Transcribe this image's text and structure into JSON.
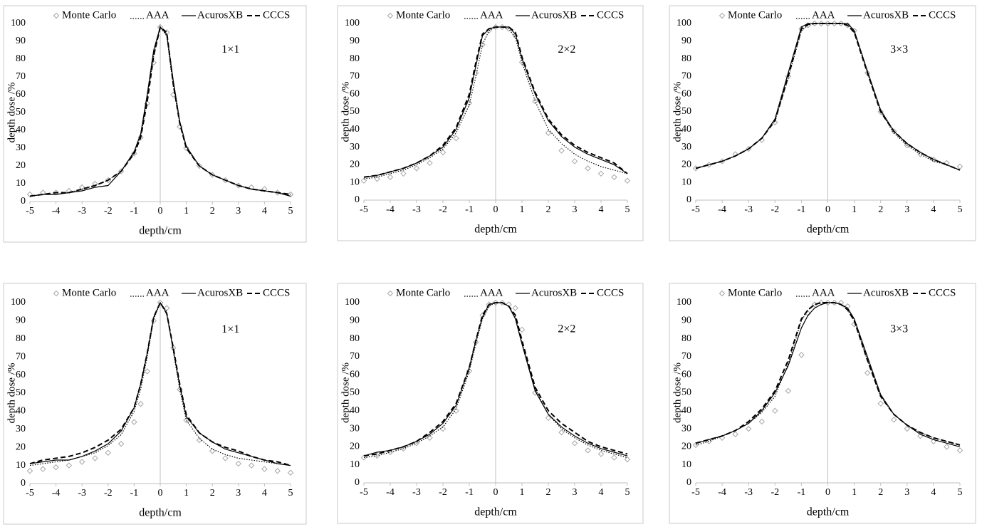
{
  "chart_data": [
    {
      "type": "line",
      "annotation": "1×1",
      "x_label": "depth/cm",
      "y_label": "depth dose /%",
      "xlim": [
        -5,
        5
      ],
      "ylim": [
        0,
        100
      ],
      "xticks": [
        -5,
        -4,
        -3,
        -2,
        -1,
        0,
        1,
        2,
        3,
        4,
        5
      ],
      "yticks": [
        0,
        10,
        20,
        30,
        40,
        50,
        60,
        70,
        80,
        90,
        100
      ],
      "x": [
        -5,
        -4.5,
        -4,
        -3.5,
        -3,
        -2.5,
        -2,
        -1.5,
        -1,
        -0.75,
        -0.5,
        -0.25,
        0,
        0.25,
        0.5,
        0.75,
        1,
        1.5,
        2,
        2.5,
        3,
        3.5,
        4,
        4.5,
        5
      ],
      "series": [
        {
          "name": "Monte Carlo",
          "color": "#a6a6a6",
          "style": "markers",
          "values": [
            4,
            5,
            5,
            6,
            8,
            10,
            12,
            17,
            27,
            36,
            55,
            78,
            98,
            95,
            60,
            42,
            30,
            20,
            15,
            12,
            9,
            8,
            7,
            5,
            4
          ]
        },
        {
          "name": "AAA",
          "color": "#000000",
          "style": "dotted",
          "values": [
            3,
            4,
            4,
            5,
            7,
            9,
            12,
            17,
            27,
            36,
            58,
            82,
            98,
            93,
            65,
            44,
            30,
            20,
            15,
            12,
            9,
            7,
            6,
            5,
            4
          ]
        },
        {
          "name": "AcurosXB",
          "color": "#000000",
          "style": "solid",
          "values": [
            3,
            4,
            4,
            5,
            6,
            8,
            9,
            17,
            28,
            38,
            60,
            85,
            98,
            94,
            68,
            45,
            31,
            20,
            15,
            12,
            9,
            7,
            6,
            5,
            3
          ]
        },
        {
          "name": "CCCS",
          "color": "#000000",
          "style": "dashed",
          "values": [
            3,
            4,
            5,
            5,
            7,
            9,
            12,
            17,
            27,
            36,
            56,
            82,
            98,
            95,
            66,
            44,
            30,
            20,
            15,
            12,
            9,
            7,
            6,
            5,
            4
          ]
        }
      ]
    },
    {
      "type": "line",
      "annotation": "2×2",
      "x_label": "depth/cm",
      "y_label": "depth dose /%",
      "xlim": [
        -5,
        5
      ],
      "ylim": [
        0,
        100
      ],
      "xticks": [
        -5,
        -4,
        -3,
        -2,
        -1,
        0,
        1,
        2,
        3,
        4,
        5
      ],
      "yticks": [
        0,
        10,
        20,
        30,
        40,
        50,
        60,
        70,
        80,
        90,
        100
      ],
      "x": [
        -5,
        -4.5,
        -4,
        -3.5,
        -3,
        -2.5,
        -2,
        -1.5,
        -1,
        -0.75,
        -0.5,
        -0.25,
        0,
        0.25,
        0.5,
        0.75,
        1,
        1.5,
        2,
        2.5,
        3,
        3.5,
        4,
        4.5,
        5
      ],
      "series": [
        {
          "name": "Monte Carlo",
          "color": "#a6a6a6",
          "style": "markers",
          "values": [
            11,
            12,
            13,
            15,
            18,
            21,
            27,
            35,
            55,
            72,
            88,
            96,
            98,
            98,
            97,
            93,
            78,
            56,
            38,
            28,
            22,
            18,
            15,
            13,
            11
          ]
        },
        {
          "name": "AAA",
          "color": "#000000",
          "style": "dotted",
          "values": [
            12,
            13,
            15,
            17,
            20,
            24,
            29,
            38,
            54,
            70,
            88,
            96,
            98,
            98,
            97,
            92,
            78,
            56,
            40,
            32,
            26,
            22,
            19,
            17,
            15
          ]
        },
        {
          "name": "AcurosXB",
          "color": "#000000",
          "style": "solid",
          "values": [
            13,
            14,
            16,
            18,
            21,
            25,
            30,
            40,
            58,
            76,
            93,
            97,
            98,
            98,
            98,
            94,
            80,
            60,
            45,
            36,
            30,
            26,
            23,
            20,
            15
          ]
        },
        {
          "name": "CCCS",
          "color": "#000000",
          "style": "dashed",
          "values": [
            13,
            14,
            16,
            18,
            21,
            25,
            31,
            41,
            60,
            78,
            94,
            97,
            98,
            98,
            98,
            95,
            81,
            61,
            46,
            37,
            31,
            27,
            24,
            21,
            15
          ]
        }
      ]
    },
    {
      "type": "line",
      "annotation": "3×3",
      "x_label": "depth/cm",
      "y_label": "depth dose /%",
      "xlim": [
        -5,
        5
      ],
      "ylim": [
        0,
        100
      ],
      "xticks": [
        -5,
        -4,
        -3,
        -2,
        -1,
        0,
        1,
        2,
        3,
        4,
        5
      ],
      "yticks": [
        0,
        10,
        20,
        30,
        40,
        50,
        60,
        70,
        80,
        90,
        100
      ],
      "x": [
        -5,
        -4.5,
        -4,
        -3.5,
        -3,
        -2.5,
        -2,
        -1.5,
        -1,
        -0.75,
        -0.5,
        -0.25,
        0,
        0.25,
        0.5,
        0.75,
        1,
        1.5,
        2,
        2.5,
        3,
        3.5,
        4,
        4.5,
        5
      ],
      "series": [
        {
          "name": "Monte Carlo",
          "color": "#a6a6a6",
          "style": "markers",
          "values": [
            18,
            20,
            22,
            26,
            29,
            34,
            44,
            70,
            97,
            99,
            100,
            100,
            100,
            100,
            100,
            99,
            96,
            72,
            50,
            39,
            31,
            26,
            23,
            21,
            19
          ]
        },
        {
          "name": "AAA",
          "color": "#000000",
          "style": "dotted",
          "values": [
            18,
            20,
            22,
            25,
            29,
            35,
            45,
            69,
            96,
            99,
            100,
            100,
            100,
            100,
            100,
            99,
            95,
            72,
            50,
            38,
            31,
            26,
            22,
            20,
            17
          ]
        },
        {
          "name": "AcurosXB",
          "color": "#000000",
          "style": "solid",
          "values": [
            18,
            20,
            22,
            25,
            29,
            35,
            46,
            72,
            98,
            100,
            100,
            100,
            100,
            100,
            100,
            100,
            96,
            73,
            51,
            39,
            32,
            27,
            23,
            20,
            17
          ]
        },
        {
          "name": "CCCS",
          "color": "#000000",
          "style": "dashed",
          "values": [
            18,
            20,
            22,
            25,
            29,
            35,
            45,
            70,
            97,
            99.5,
            100,
            100,
            100,
            100,
            100,
            99,
            95,
            72,
            50,
            39,
            32,
            27,
            23,
            20,
            17
          ]
        }
      ]
    },
    {
      "type": "line",
      "annotation": "1×1",
      "x_label": "depth/cm",
      "y_label": "depth dose /%",
      "xlim": [
        -5,
        5
      ],
      "ylim": [
        0,
        100
      ],
      "xticks": [
        -5,
        -4,
        -3,
        -2,
        -1,
        0,
        1,
        2,
        3,
        4,
        5
      ],
      "yticks": [
        0,
        10,
        20,
        30,
        40,
        50,
        60,
        70,
        80,
        90,
        100
      ],
      "x": [
        -5,
        -4.5,
        -4,
        -3.5,
        -3,
        -2.5,
        -2,
        -1.5,
        -1,
        -0.75,
        -0.5,
        -0.25,
        0,
        0.25,
        0.5,
        0.75,
        1,
        1.5,
        2,
        2.5,
        3,
        3.5,
        4,
        4.5,
        5
      ],
      "series": [
        {
          "name": "Monte Carlo",
          "color": "#a6a6a6",
          "style": "markers",
          "values": [
            7,
            8,
            9,
            10,
            12,
            14,
            17,
            22,
            34,
            44,
            62,
            90,
            100,
            97,
            75,
            52,
            35,
            24,
            18,
            14,
            11,
            10,
            8,
            7,
            6
          ]
        },
        {
          "name": "AAA",
          "color": "#000000",
          "style": "dotted",
          "values": [
            10,
            11,
            12,
            13,
            15,
            17,
            21,
            27,
            40,
            52,
            70,
            91,
            100,
            95,
            73,
            52,
            35,
            25,
            19,
            16,
            14,
            13,
            12,
            11,
            10
          ]
        },
        {
          "name": "AcurosXB",
          "color": "#000000",
          "style": "solid",
          "values": [
            11,
            12,
            13,
            13,
            15,
            18,
            22,
            29,
            42,
            55,
            72,
            92,
            100,
            94,
            74,
            54,
            37,
            28,
            23,
            19,
            17,
            15,
            13,
            11,
            10
          ]
        },
        {
          "name": "CCCS",
          "color": "#000000",
          "style": "dashed",
          "values": [
            11,
            13,
            14,
            15,
            17,
            20,
            24,
            30,
            42,
            55,
            72,
            92,
            100,
            94,
            75,
            55,
            38,
            28,
            23,
            20,
            18,
            15,
            13,
            12,
            10
          ]
        }
      ]
    },
    {
      "type": "line",
      "annotation": "2×2",
      "x_label": "depth/cm",
      "y_label": "depth dose /%",
      "xlim": [
        -5,
        5
      ],
      "ylim": [
        0,
        100
      ],
      "xticks": [
        -5,
        -4,
        -3,
        -2,
        -1,
        0,
        1,
        2,
        3,
        4,
        5
      ],
      "yticks": [
        0,
        10,
        20,
        30,
        40,
        50,
        60,
        70,
        80,
        90,
        100
      ],
      "x": [
        -5,
        -4.5,
        -4,
        -3.5,
        -3,
        -2.5,
        -2,
        -1.5,
        -1,
        -0.75,
        -0.5,
        -0.25,
        0,
        0.25,
        0.5,
        0.75,
        1,
        1.5,
        2,
        2.5,
        3,
        3.5,
        4,
        4.5,
        5
      ],
      "series": [
        {
          "name": "Monte Carlo",
          "color": "#a6a6a6",
          "style": "markers",
          "values": [
            14,
            15,
            17,
            19,
            22,
            25,
            30,
            40,
            62,
            78,
            93,
            99,
            100,
            100,
            99,
            97,
            85,
            50,
            36,
            28,
            22,
            18,
            16,
            14,
            13
          ]
        },
        {
          "name": "AAA",
          "color": "#000000",
          "style": "dotted",
          "values": [
            14,
            15,
            17,
            19,
            22,
            26,
            31,
            41,
            62,
            77,
            91,
            98,
            100,
            100,
            98,
            92,
            78,
            52,
            38,
            30,
            25,
            21,
            18,
            16,
            14
          ]
        },
        {
          "name": "AcurosXB",
          "color": "#000000",
          "style": "solid",
          "values": [
            15,
            17,
            18,
            20,
            23,
            27,
            33,
            43,
            64,
            79,
            92,
            99,
            100,
            100,
            98,
            91,
            77,
            51,
            38,
            31,
            26,
            22,
            19,
            17,
            15
          ]
        },
        {
          "name": "CCCS",
          "color": "#000000",
          "style": "dashed",
          "values": [
            15,
            16,
            18,
            20,
            23,
            28,
            34,
            44,
            64,
            79,
            93,
            99,
            100,
            100,
            98,
            93,
            79,
            53,
            40,
            33,
            28,
            23,
            20,
            18,
            16
          ]
        }
      ]
    },
    {
      "type": "line",
      "annotation": "3×3",
      "x_label": "depth/cm",
      "y_label": "depth dose /%",
      "xlim": [
        -5,
        5
      ],
      "ylim": [
        0,
        100
      ],
      "xticks": [
        -5,
        -4,
        -3,
        -2,
        -1,
        0,
        1,
        2,
        3,
        4,
        5
      ],
      "yticks": [
        0,
        10,
        20,
        30,
        40,
        50,
        60,
        70,
        80,
        90,
        100
      ],
      "x": [
        -5,
        -4.5,
        -4,
        -3.5,
        -3,
        -2.5,
        -2,
        -1.5,
        -1,
        -0.75,
        -0.5,
        -0.25,
        0,
        0.25,
        0.5,
        0.75,
        1,
        1.5,
        2,
        2.5,
        3,
        3.5,
        4,
        4.5,
        5
      ],
      "series": [
        {
          "name": "Monte Carlo",
          "color": "#a6a6a6",
          "style": "markers",
          "values": [
            21,
            23,
            25,
            27,
            30,
            34,
            40,
            51,
            71,
            94,
            99,
            100,
            100,
            100,
            100,
            98,
            88,
            61,
            44,
            35,
            30,
            26,
            23,
            20,
            18
          ]
        },
        {
          "name": "AAA",
          "color": "#000000",
          "style": "dotted",
          "values": [
            21,
            23,
            26,
            29,
            33,
            39,
            48,
            66,
            90,
            96,
            99,
            100,
            100,
            100,
            99,
            96,
            90,
            68,
            48,
            38,
            32,
            28,
            25,
            23,
            21
          ]
        },
        {
          "name": "AcurosXB",
          "color": "#000000",
          "style": "solid",
          "values": [
            22,
            24,
            26,
            29,
            33,
            40,
            50,
            65,
            86,
            93,
            97,
            99,
            100,
            100,
            99,
            97,
            91,
            70,
            49,
            38,
            32,
            27,
            24,
            22,
            20
          ]
        },
        {
          "name": "CCCS",
          "color": "#000000",
          "style": "dashed",
          "values": [
            22,
            24,
            26,
            29,
            34,
            41,
            51,
            68,
            91,
            96,
            99,
            100,
            100,
            100,
            99,
            96,
            90,
            68,
            48,
            38,
            32,
            28,
            25,
            23,
            21
          ]
        }
      ]
    }
  ]
}
